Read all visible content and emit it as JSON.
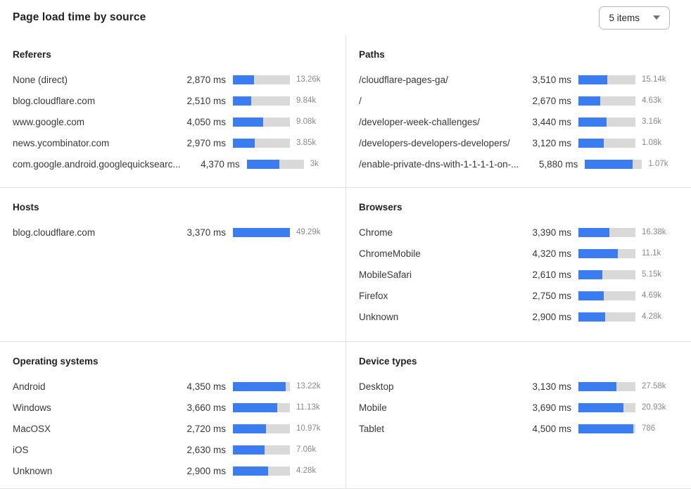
{
  "header": {
    "title": "Page load time by source",
    "items_select_value": "5 items"
  },
  "colors": {
    "bar_fill": "#3b7df0",
    "bar_track": "#d9d9d9"
  },
  "sections": [
    {
      "id": "referers",
      "title": "Referers",
      "axis_max_ms": 7700,
      "rows": [
        {
          "label": "None (direct)",
          "ms": "2,870 ms",
          "ms_value": 2870,
          "count": "13.26k"
        },
        {
          "label": "blog.cloudflare.com",
          "ms": "2,510 ms",
          "ms_value": 2510,
          "count": "9.84k"
        },
        {
          "label": "www.google.com",
          "ms": "4,050 ms",
          "ms_value": 4050,
          "count": "9.08k"
        },
        {
          "label": "news.ycombinator.com",
          "ms": "2,970 ms",
          "ms_value": 2970,
          "count": "3.85k"
        },
        {
          "label": "com.google.android.googlequicksearc...",
          "ms": "4,370 ms",
          "ms_value": 4370,
          "count": "3k"
        }
      ]
    },
    {
      "id": "paths",
      "title": "Paths",
      "axis_max_ms": 7000,
      "rows": [
        {
          "label": "/cloudflare-pages-ga/",
          "ms": "3,510 ms",
          "ms_value": 3510,
          "count": "15.14k"
        },
        {
          "label": "/",
          "ms": "2,670 ms",
          "ms_value": 2670,
          "count": "4.63k"
        },
        {
          "label": "/developer-week-challenges/",
          "ms": "3,440 ms",
          "ms_value": 3440,
          "count": "3.16k"
        },
        {
          "label": "/developers-developers-developers/",
          "ms": "3,120 ms",
          "ms_value": 3120,
          "count": "1.08k"
        },
        {
          "label": "/enable-private-dns-with-1-1-1-1-on-...",
          "ms": "5,880 ms",
          "ms_value": 5880,
          "count": "1.07k"
        }
      ]
    },
    {
      "id": "hosts",
      "title": "Hosts",
      "axis_max_ms": 3370,
      "rows": [
        {
          "label": "blog.cloudflare.com",
          "ms": "3,370 ms",
          "ms_value": 3370,
          "count": "49.29k"
        }
      ]
    },
    {
      "id": "browsers",
      "title": "Browsers",
      "axis_max_ms": 6250,
      "rows": [
        {
          "label": "Chrome",
          "ms": "3,390 ms",
          "ms_value": 3390,
          "count": "16.38k"
        },
        {
          "label": "ChromeMobile",
          "ms": "4,320 ms",
          "ms_value": 4320,
          "count": "11.1k"
        },
        {
          "label": "MobileSafari",
          "ms": "2,610 ms",
          "ms_value": 2610,
          "count": "5.15k"
        },
        {
          "label": "Firefox",
          "ms": "2,750 ms",
          "ms_value": 2750,
          "count": "4.69k"
        },
        {
          "label": "Unknown",
          "ms": "2,900 ms",
          "ms_value": 2900,
          "count": "4.28k"
        }
      ]
    },
    {
      "id": "operating-systems",
      "title": "Operating systems",
      "axis_max_ms": 4700,
      "rows": [
        {
          "label": "Android",
          "ms": "4,350 ms",
          "ms_value": 4350,
          "count": "13.22k"
        },
        {
          "label": "Windows",
          "ms": "3,660 ms",
          "ms_value": 3660,
          "count": "11.13k"
        },
        {
          "label": "MacOSX",
          "ms": "2,720 ms",
          "ms_value": 2720,
          "count": "10.97k"
        },
        {
          "label": "iOS",
          "ms": "2,630 ms",
          "ms_value": 2630,
          "count": "7.06k"
        },
        {
          "label": "Unknown",
          "ms": "2,900 ms",
          "ms_value": 2900,
          "count": "4.28k"
        }
      ]
    },
    {
      "id": "device-types",
      "title": "Device types",
      "axis_max_ms": 4700,
      "rows": [
        {
          "label": "Desktop",
          "ms": "3,130 ms",
          "ms_value": 3130,
          "count": "27.58k"
        },
        {
          "label": "Mobile",
          "ms": "3,690 ms",
          "ms_value": 3690,
          "count": "20.93k"
        },
        {
          "label": "Tablet",
          "ms": "4,500 ms",
          "ms_value": 4500,
          "count": "786"
        }
      ]
    }
  ],
  "chart_data": [
    {
      "type": "bar",
      "orientation": "horizontal",
      "title": "Referers",
      "categories": [
        "None (direct)",
        "blog.cloudflare.com",
        "www.google.com",
        "news.ycombinator.com",
        "com.google.android.googlequicksearc..."
      ],
      "values": [
        2870,
        2510,
        4050,
        2970,
        4370
      ],
      "value_unit": "ms",
      "counts": [
        "13.26k",
        "9.84k",
        "9.08k",
        "3.85k",
        "3k"
      ]
    },
    {
      "type": "bar",
      "orientation": "horizontal",
      "title": "Paths",
      "categories": [
        "/cloudflare-pages-ga/",
        "/",
        "/developer-week-challenges/",
        "/developers-developers-developers/",
        "/enable-private-dns-with-1-1-1-1-on-..."
      ],
      "values": [
        3510,
        2670,
        3440,
        3120,
        5880
      ],
      "value_unit": "ms",
      "counts": [
        "15.14k",
        "4.63k",
        "3.16k",
        "1.08k",
        "1.07k"
      ]
    },
    {
      "type": "bar",
      "orientation": "horizontal",
      "title": "Hosts",
      "categories": [
        "blog.cloudflare.com"
      ],
      "values": [
        3370
      ],
      "value_unit": "ms",
      "counts": [
        "49.29k"
      ]
    },
    {
      "type": "bar",
      "orientation": "horizontal",
      "title": "Browsers",
      "categories": [
        "Chrome",
        "ChromeMobile",
        "MobileSafari",
        "Firefox",
        "Unknown"
      ],
      "values": [
        3390,
        4320,
        2610,
        2750,
        2900
      ],
      "value_unit": "ms",
      "counts": [
        "16.38k",
        "11.1k",
        "5.15k",
        "4.69k",
        "4.28k"
      ]
    },
    {
      "type": "bar",
      "orientation": "horizontal",
      "title": "Operating systems",
      "categories": [
        "Android",
        "Windows",
        "MacOSX",
        "iOS",
        "Unknown"
      ],
      "values": [
        4350,
        3660,
        2720,
        2630,
        2900
      ],
      "value_unit": "ms",
      "counts": [
        "13.22k",
        "11.13k",
        "10.97k",
        "7.06k",
        "4.28k"
      ]
    },
    {
      "type": "bar",
      "orientation": "horizontal",
      "title": "Device types",
      "categories": [
        "Desktop",
        "Mobile",
        "Tablet"
      ],
      "values": [
        3130,
        3690,
        4500
      ],
      "value_unit": "ms",
      "counts": [
        "27.58k",
        "20.93k",
        "786"
      ]
    }
  ]
}
